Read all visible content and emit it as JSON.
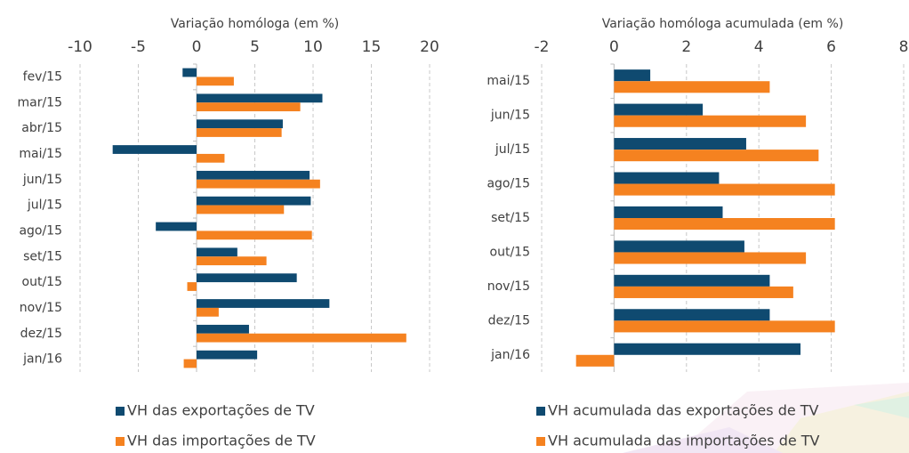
{
  "chart_data": [
    {
      "type": "bar",
      "orientation": "horizontal",
      "title": "Variação homóloga (em %)",
      "categories": [
        "fev/15",
        "mar/15",
        "abr/15",
        "mai/15",
        "jun/15",
        "jul/15",
        "ago/15",
        "set/15",
        "out/15",
        "nov/15",
        "dez/15",
        "jan/16"
      ],
      "series": [
        {
          "name": "VH das exportações de TV",
          "color": "#0f4a70",
          "values": [
            -1.2,
            10.8,
            7.4,
            -7.2,
            9.7,
            9.8,
            -3.5,
            3.5,
            8.6,
            11.4,
            4.5,
            5.2
          ]
        },
        {
          "name": "VH das importações de TV",
          "color": "#f58220",
          "values": [
            3.2,
            8.9,
            7.3,
            2.4,
            10.6,
            7.5,
            9.9,
            6.0,
            -0.8,
            1.9,
            18.0,
            -1.1
          ]
        }
      ],
      "xlim": [
        -10,
        20
      ],
      "xticks": [
        -10,
        -5,
        0,
        5,
        10,
        15,
        20
      ],
      "grid": true
    },
    {
      "type": "bar",
      "orientation": "horizontal",
      "title": "Variação homóloga acumulada (em %)",
      "categories": [
        "mai/15",
        "jun/15",
        "jul/15",
        "ago/15",
        "set/15",
        "out/15",
        "nov/15",
        "dez/15",
        "jan/16"
      ],
      "series": [
        {
          "name": "VH acumulada das exportações de TV",
          "color": "#0f4a70",
          "values": [
            1.0,
            2.45,
            3.65,
            2.9,
            3.0,
            3.6,
            4.3,
            4.3,
            5.15
          ]
        },
        {
          "name": "VH acumulada das importações de TV",
          "color": "#f58220",
          "values": [
            4.3,
            5.3,
            5.65,
            6.1,
            6.1,
            5.3,
            4.95,
            6.1,
            -1.05
          ]
        }
      ],
      "xlim": [
        -2,
        8
      ],
      "xticks": [
        -2,
        0,
        2,
        4,
        6,
        8
      ],
      "grid": true
    }
  ]
}
